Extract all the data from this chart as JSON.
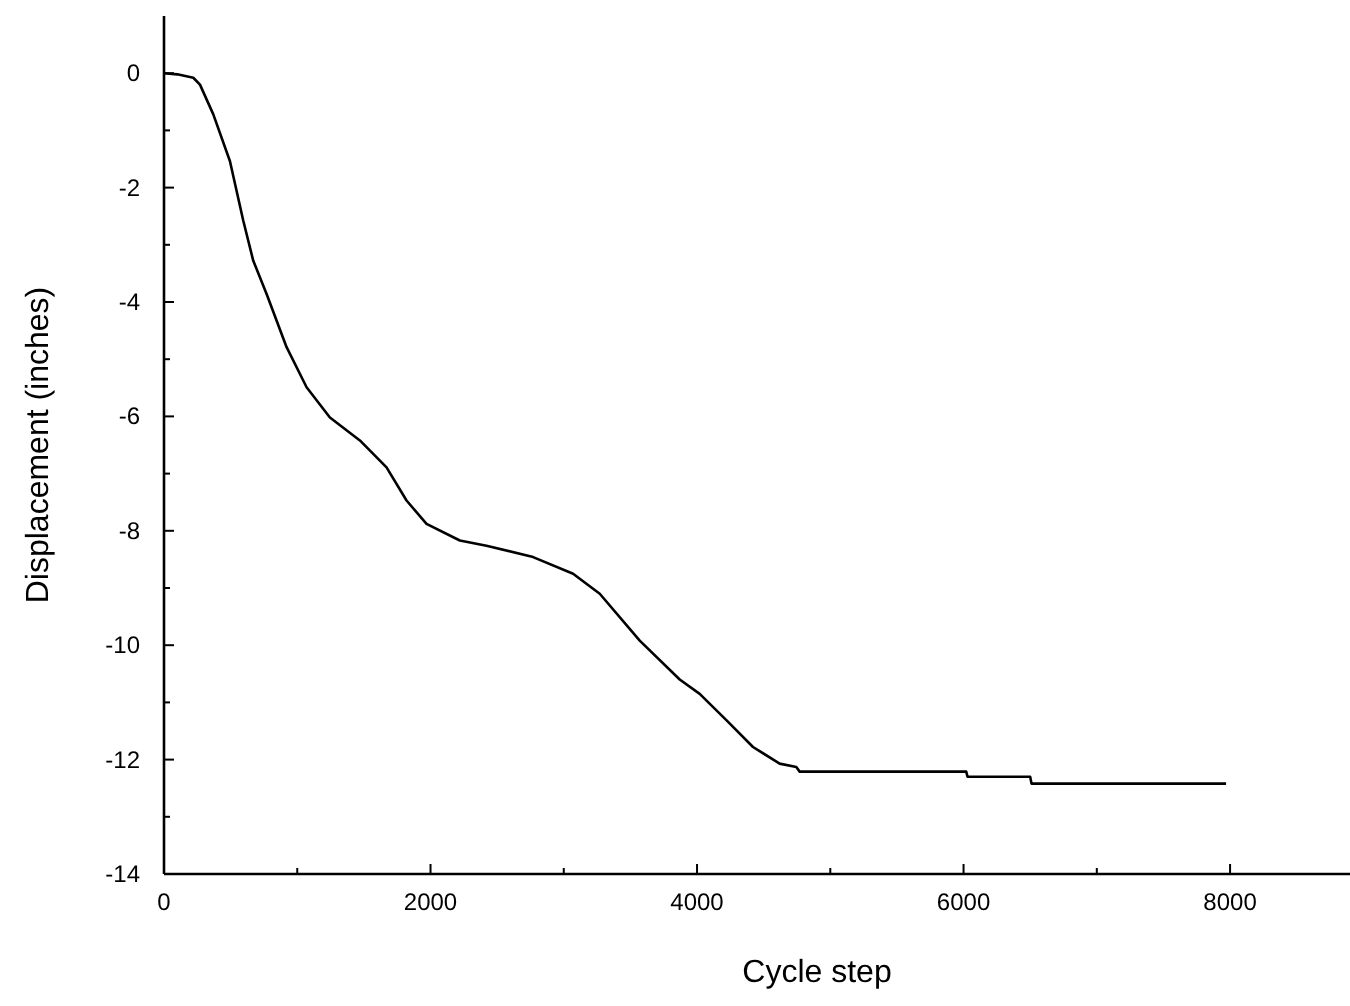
{
  "chart_data": {
    "type": "line",
    "xlabel": "Cycle step",
    "ylabel": "Displacement (inches)",
    "x": [
      0,
      100,
      220,
      270,
      370,
      495,
      595,
      670,
      770,
      920,
      1070,
      1245,
      1470,
      1670,
      1820,
      1970,
      2220,
      2420,
      2770,
      3070,
      3270,
      3570,
      3870,
      4020,
      4220,
      4420,
      4620,
      4745,
      4770,
      6020,
      6030,
      6500,
      6510,
      7970
    ],
    "series": [
      {
        "color": "#000000",
        "values": [
          0,
          -0.02,
          -0.08,
          -0.2,
          -0.72,
          -1.54,
          -2.58,
          -3.28,
          -3.86,
          -4.79,
          -5.49,
          -6.02,
          -6.42,
          -6.89,
          -7.47,
          -7.88,
          -8.17,
          -8.26,
          -8.46,
          -8.75,
          -9.1,
          -9.92,
          -10.6,
          -10.85,
          -11.31,
          -11.78,
          -12.07,
          -12.13,
          -12.21,
          -12.21,
          -12.3,
          -12.3,
          -12.42,
          -12.42
        ]
      }
    ],
    "xlim": [
      0,
      8900
    ],
    "ylim": [
      -14,
      1
    ],
    "xticks": [
      0,
      {
        "value": 1000,
        "label": null
      },
      2000,
      {
        "value": 3000,
        "label": null
      },
      4000,
      {
        "value": 5000,
        "label": null
      },
      6000,
      {
        "value": 7000,
        "label": null
      },
      8000
    ],
    "yticks": [
      -14,
      {
        "value": -13,
        "label": null
      },
      -12,
      {
        "value": -11,
        "label": null
      },
      -10,
      {
        "value": -9,
        "label": null
      },
      -8,
      {
        "value": -7,
        "label": null
      },
      -6,
      {
        "value": -5,
        "label": null
      },
      -4,
      {
        "value": -3,
        "label": null
      },
      -2,
      {
        "value": -1,
        "label": null
      },
      0
    ],
    "marker": "none",
    "line_style": "solid"
  }
}
